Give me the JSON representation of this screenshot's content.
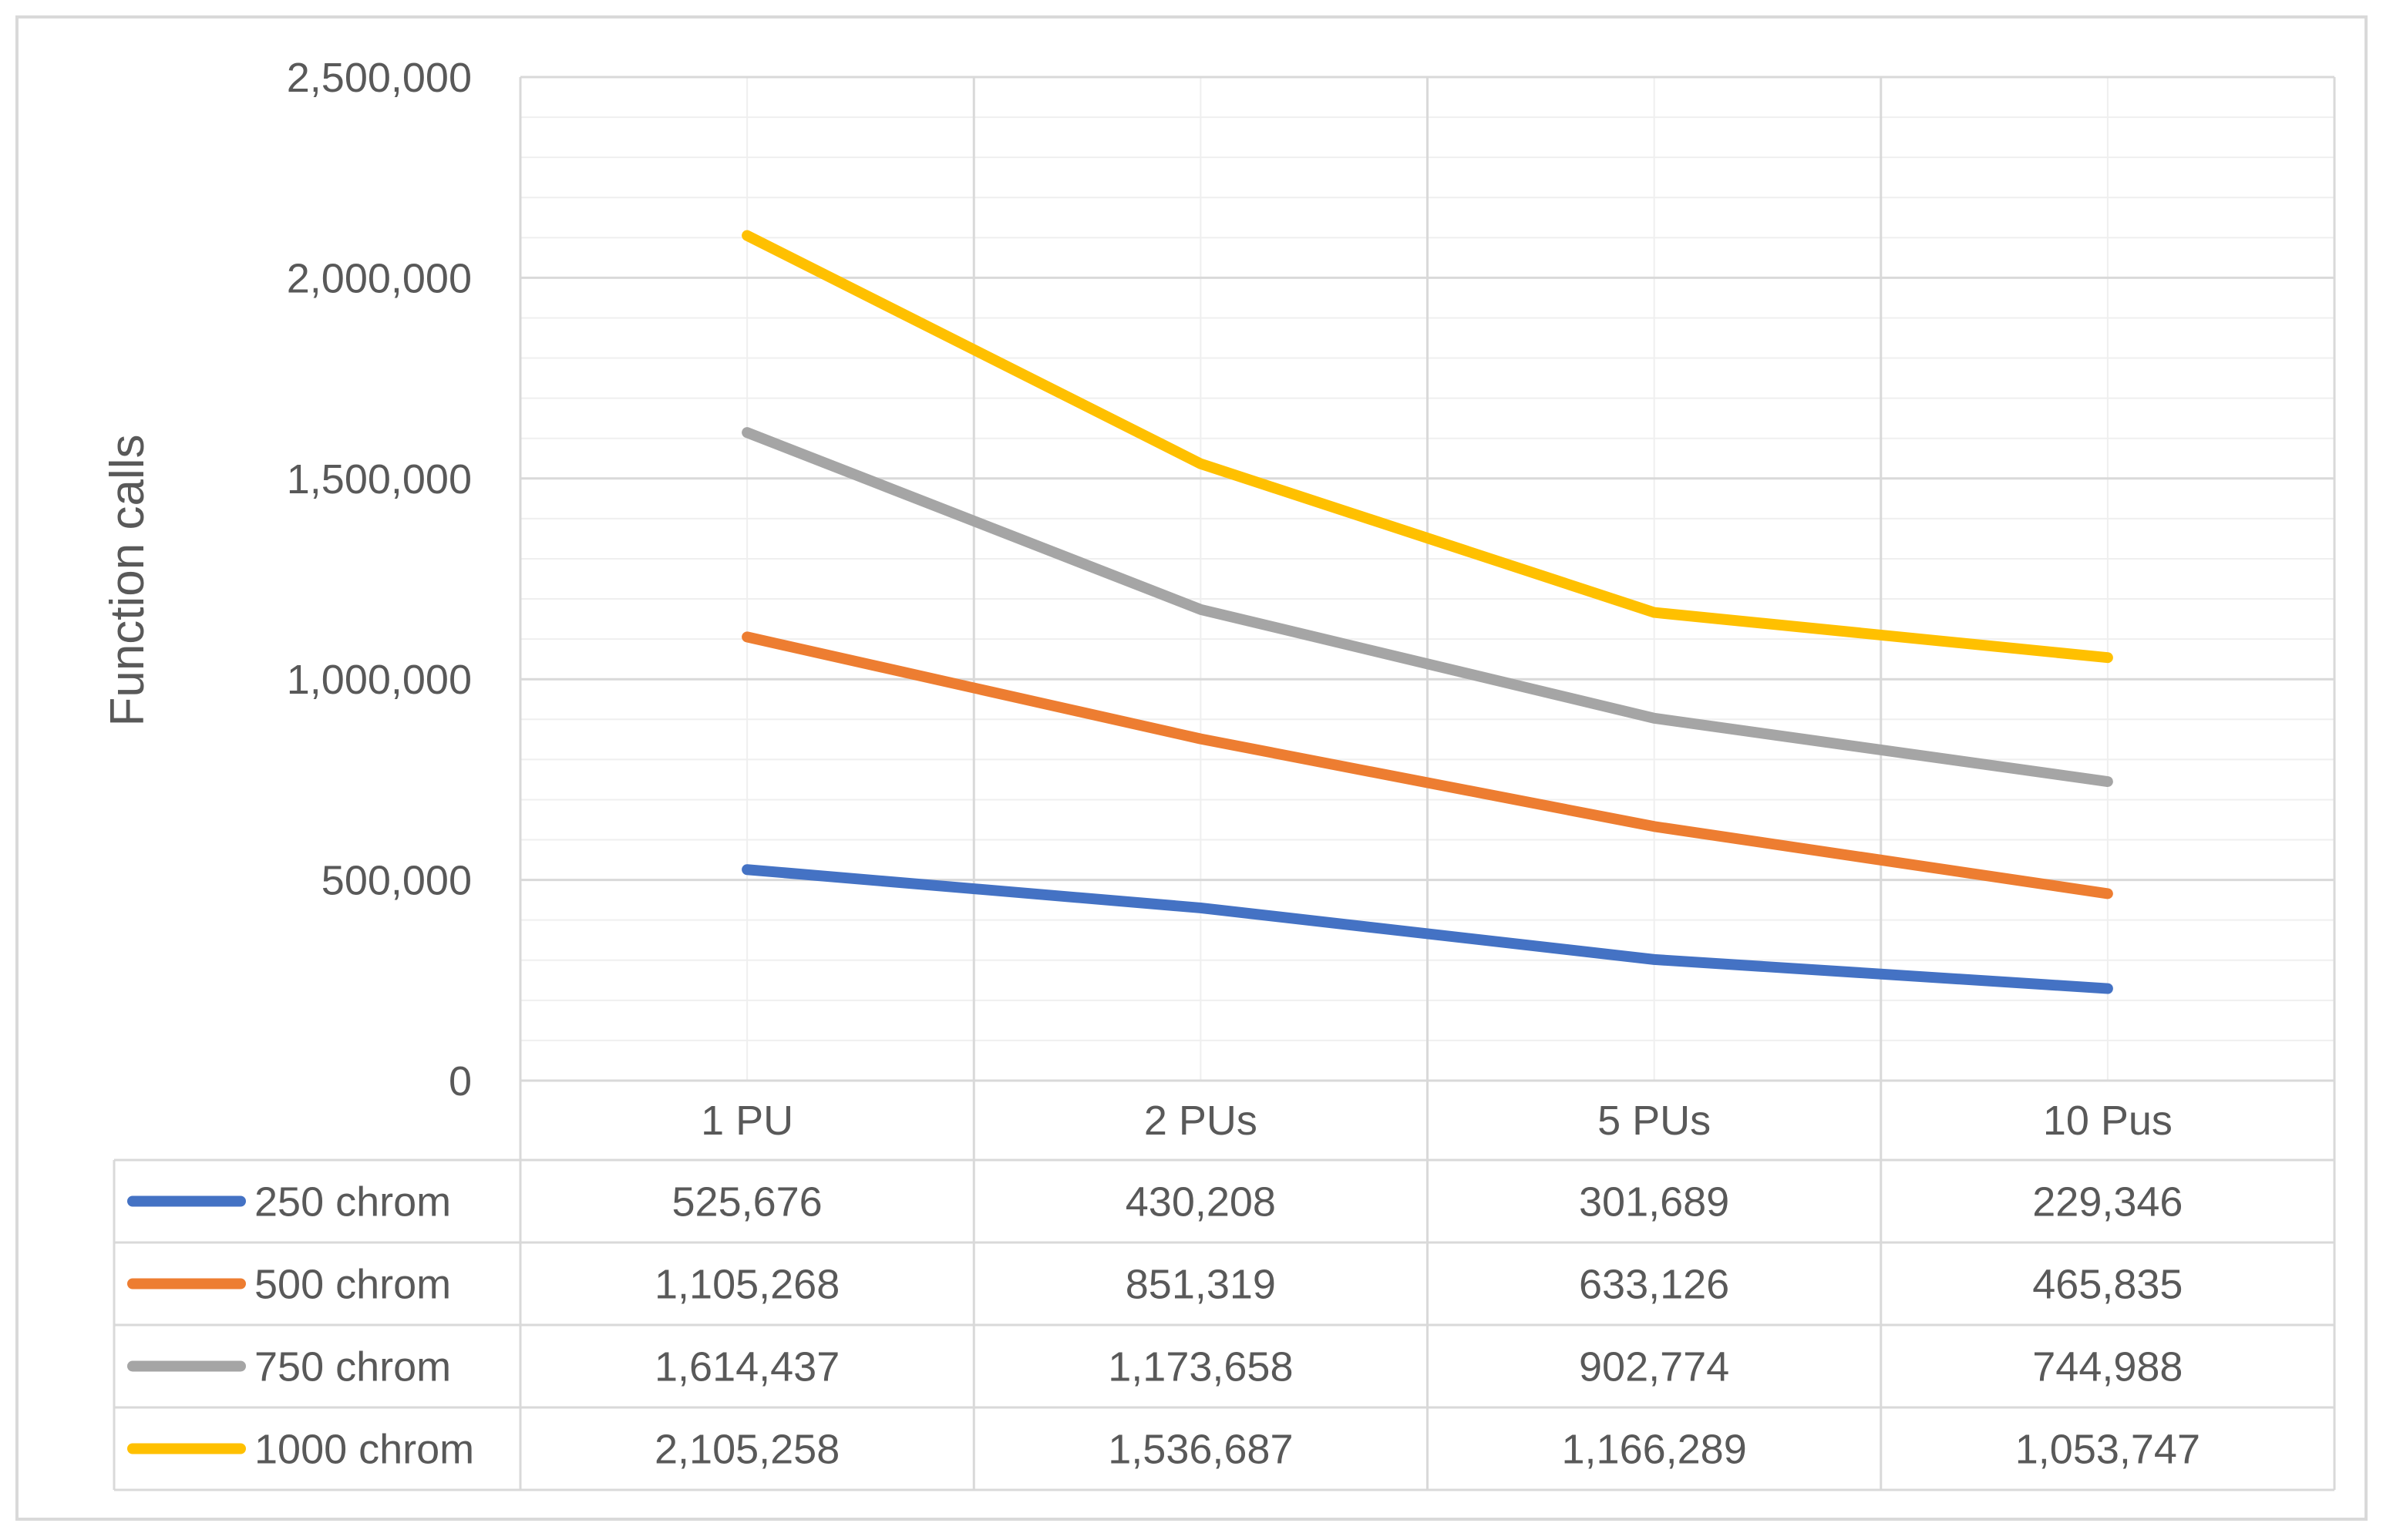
{
  "chart_data": {
    "type": "line",
    "title": "",
    "xlabel": "",
    "ylabel": "Function calls",
    "ylim": [
      0,
      2500000
    ],
    "y_ticks": [
      {
        "value": 0,
        "label": "0"
      },
      {
        "value": 500000,
        "label": "500,000"
      },
      {
        "value": 1000000,
        "label": "1,000,000"
      },
      {
        "value": 1500000,
        "label": "1,500,000"
      },
      {
        "value": 2000000,
        "label": "2,000,000"
      },
      {
        "value": 2500000,
        "label": "2,500,000"
      }
    ],
    "categories": [
      "1 PU",
      "2 PUs",
      "5 PUs",
      "10 Pus"
    ],
    "grid": true,
    "legend": "data-table",
    "series": [
      {
        "name": "250 chrom",
        "color": "#4472C4",
        "values": [
          525676,
          430208,
          301689,
          229346
        ],
        "labels": [
          "525,676",
          "430,208",
          "301,689",
          "229,346"
        ]
      },
      {
        "name": "500 chrom",
        "color": "#ED7D31",
        "values": [
          1105268,
          851319,
          633126,
          465835
        ],
        "labels": [
          "1,105,268",
          "851,319",
          "633,126",
          "465,835"
        ]
      },
      {
        "name": "750 chrom",
        "color": "#A5A5A5",
        "values": [
          1614437,
          1173658,
          902774,
          744988
        ],
        "labels": [
          "1,614,437",
          "1,173,658",
          "902,774",
          "744,988"
        ]
      },
      {
        "name": "1000 chrom",
        "color": "#FFC000",
        "values": [
          2105258,
          1536687,
          1166289,
          1053747
        ],
        "labels": [
          "2,105,258",
          "1,536,687",
          "1,166,289",
          "1,053,747"
        ]
      }
    ]
  }
}
